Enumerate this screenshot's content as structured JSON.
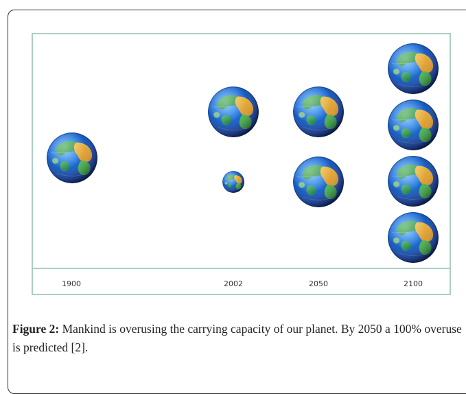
{
  "figure": {
    "years": [
      "1900",
      "2002",
      "2050",
      "2100"
    ]
  },
  "caption": {
    "label": "Figure 2:",
    "text": " Mankind is overusing the carrying capacity of our planet. By 2050 a 100% overuse is predicted [2]."
  },
  "icons": {
    "globe": "earth-globe-icon"
  }
}
